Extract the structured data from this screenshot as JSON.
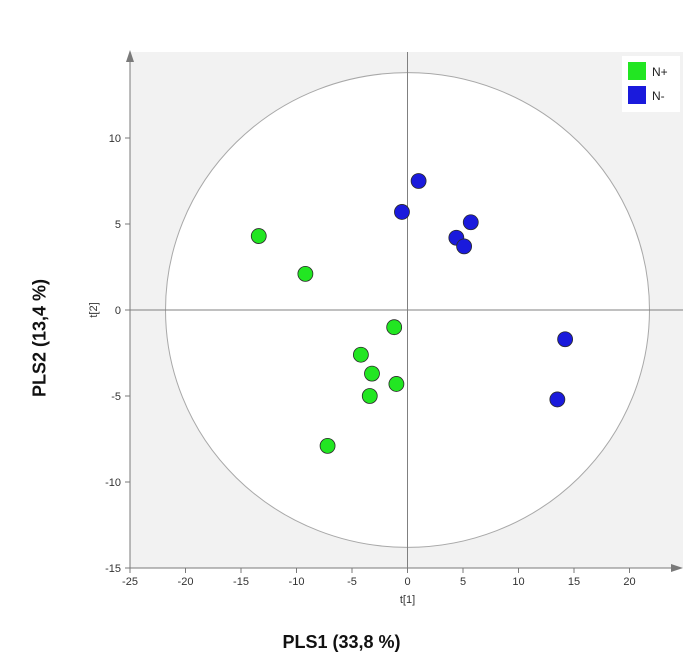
{
  "chart_data": {
    "type": "scatter",
    "title": "",
    "xlabel": "PLS1 (33,8 %)",
    "ylabel": "PLS2 (13,4 %)",
    "inner_xlabel": "t[1]",
    "inner_ylabel": "t[2]",
    "xlim": [
      -25,
      25
    ],
    "ylim": [
      -15,
      15
    ],
    "x_ticks": [
      -25,
      -20,
      -15,
      -10,
      -5,
      0,
      5,
      10,
      15,
      20
    ],
    "y_ticks": [
      -15,
      -10,
      -5,
      0,
      5,
      10
    ],
    "x_tick_labels": [
      "-25",
      "-20",
      "-15",
      "-10",
      "-5",
      "0",
      "5",
      "10",
      "15",
      "20"
    ],
    "y_tick_labels": [
      "-15",
      "-10",
      "-5",
      "0",
      "5",
      "10"
    ],
    "grid": false,
    "legend_position": "top-right",
    "ellipse": {
      "rx": 21.8,
      "ry": 13.8
    },
    "series": [
      {
        "name": "N+",
        "color": "#22e622",
        "points": [
          [
            -13.4,
            4.3
          ],
          [
            -9.2,
            2.1
          ],
          [
            -1.2,
            -1.0
          ],
          [
            -4.2,
            -2.6
          ],
          [
            -3.2,
            -3.7
          ],
          [
            -1.0,
            -4.3
          ],
          [
            -3.4,
            -5.0
          ],
          [
            -7.2,
            -7.9
          ]
        ]
      },
      {
        "name": "N-",
        "color": "#1a1adc",
        "points": [
          [
            1.0,
            7.5
          ],
          [
            -0.5,
            5.7
          ],
          [
            5.7,
            5.1
          ],
          [
            4.4,
            4.2
          ],
          [
            5.1,
            3.7
          ],
          [
            14.2,
            -1.7
          ],
          [
            13.5,
            -5.2
          ]
        ]
      }
    ]
  }
}
